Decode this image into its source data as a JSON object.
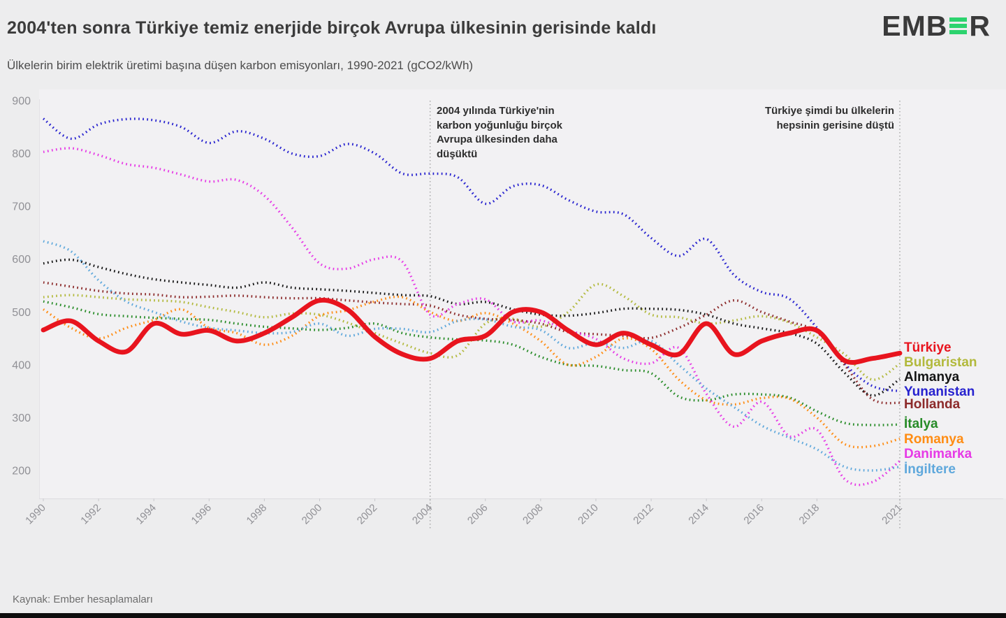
{
  "header": {
    "title": "2004'ten sonra Türkiye temiz enerjide birçok Avrupa ülkesinin gerisinde kaldı",
    "subtitle": "Ülkelerin birim elektrik üretimi başına düşen karbon emisyonları, 1990-2021 (gCO2/kWh)"
  },
  "logo": {
    "left": "EMB",
    "right": "R",
    "bar_color": "#2cd36e"
  },
  "annotations": {
    "ann2004": "2004 yılında Türkiye'nin karbon yoğunluğu birçok Avrupa ülkesinden daha düşüktü",
    "ann2021": "Türkiye şimdi bu ülkelerin hepsinin gerisine düştü"
  },
  "footer": {
    "source": "Kaynak: Ember hesaplamaları"
  },
  "chart_data": {
    "type": "line",
    "title": "2004'ten sonra Türkiye temiz enerjide birçok Avrupa ülkesinin gerisinde kaldı",
    "subtitle": "Ülkelerin birim elektrik üretimi başına düşen karbon emisyonları, 1990-2021 (gCO2/kWh)",
    "units": "gCO2/kWh",
    "x": [
      1990,
      1991,
      1992,
      1993,
      1994,
      1995,
      1996,
      1997,
      1998,
      1999,
      2000,
      2001,
      2002,
      2003,
      2004,
      2005,
      2006,
      2007,
      2008,
      2009,
      2010,
      2011,
      2012,
      2013,
      2014,
      2015,
      2016,
      2017,
      2018,
      2019,
      2020,
      2021
    ],
    "x_tick_labels": [
      "1990",
      "1992",
      "1994",
      "1996",
      "1998",
      "2000",
      "2002",
      "2004",
      "2006",
      "2008",
      "2010",
      "2012",
      "2014",
      "2016",
      "2018",
      "2021"
    ],
    "y_ticks": [
      200,
      300,
      400,
      500,
      600,
      700,
      800,
      900
    ],
    "xlim": [
      1990,
      2021
    ],
    "ylim": [
      150,
      910
    ],
    "grid": false,
    "legend_position": "right",
    "reference_years": [
      2004,
      2021
    ],
    "series": [
      {
        "name": "Türkiye",
        "id": "turkiye",
        "color": "#e8141e",
        "style": "solid",
        "values": [
          466,
          483,
          445,
          425,
          478,
          458,
          465,
          445,
          460,
          490,
          522,
          505,
          453,
          420,
          412,
          445,
          455,
          500,
          500,
          465,
          438,
          460,
          438,
          420,
          478,
          420,
          445,
          460,
          465,
          408,
          412,
          422
        ]
      },
      {
        "name": "Bulgaristan",
        "id": "bulgaristan",
        "color": "#b2b93c",
        "style": "dotted",
        "values": [
          528,
          532,
          528,
          524,
          522,
          519,
          509,
          500,
          490,
          497,
          495,
          480,
          460,
          440,
          422,
          418,
          478,
          487,
          472,
          500,
          552,
          530,
          495,
          490,
          478,
          484,
          492,
          480,
          452,
          420,
          372,
          402
        ]
      },
      {
        "name": "Almanya",
        "id": "almanya",
        "color": "#141414",
        "style": "dotted",
        "values": [
          592,
          599,
          585,
          572,
          562,
          556,
          551,
          546,
          556,
          546,
          543,
          540,
          536,
          532,
          530,
          515,
          519,
          505,
          495,
          493,
          498,
          506,
          506,
          504,
          495,
          478,
          469,
          460,
          440,
          385,
          342,
          373
        ]
      },
      {
        "name": "Yunanistan",
        "id": "yunanistan",
        "color": "#2722cf",
        "style": "dotted",
        "values": [
          866,
          828,
          855,
          865,
          863,
          850,
          820,
          842,
          828,
          800,
          795,
          818,
          800,
          762,
          762,
          755,
          705,
          738,
          740,
          712,
          690,
          685,
          640,
          606,
          638,
          570,
          538,
          525,
          470,
          402,
          360,
          350
        ]
      },
      {
        "name": "Hollanda",
        "id": "hollanda",
        "color": "#8c2a2a",
        "style": "dotted",
        "values": [
          556,
          548,
          540,
          535,
          533,
          528,
          529,
          531,
          528,
          526,
          526,
          522,
          518,
          515,
          512,
          495,
          487,
          485,
          478,
          462,
          458,
          455,
          451,
          470,
          495,
          522,
          500,
          482,
          462,
          400,
          335,
          328
        ]
      },
      {
        "name": "İtalya",
        "id": "italya",
        "color": "#278b27",
        "style": "dotted",
        "values": [
          520,
          509,
          496,
          492,
          489,
          487,
          485,
          478,
          472,
          469,
          466,
          470,
          478,
          460,
          452,
          448,
          446,
          438,
          415,
          400,
          398,
          390,
          384,
          340,
          333,
          344,
          344,
          338,
          312,
          290,
          286,
          287
        ]
      },
      {
        "name": "Romanya",
        "id": "romanya",
        "color": "#ff8c12",
        "style": "dotted",
        "values": [
          505,
          470,
          450,
          470,
          485,
          505,
          470,
          460,
          438,
          455,
          493,
          503,
          520,
          528,
          500,
          483,
          498,
          478,
          445,
          400,
          415,
          450,
          430,
          372,
          333,
          325,
          337,
          336,
          300,
          250,
          246,
          260
        ]
      },
      {
        "name": "Danimarka",
        "id": "danimarka",
        "color": "#e63ae6",
        "style": "dotted",
        "values": [
          803,
          810,
          797,
          780,
          773,
          760,
          747,
          750,
          720,
          660,
          592,
          582,
          600,
          595,
          495,
          515,
          524,
          482,
          484,
          465,
          449,
          412,
          403,
          432,
          345,
          283,
          330,
          265,
          277,
          184,
          178,
          218
        ]
      },
      {
        "name": "İngiltere",
        "id": "ingiltere",
        "color": "#5fa8dc",
        "style": "dotted",
        "values": [
          634,
          615,
          560,
          520,
          500,
          482,
          470,
          465,
          460,
          462,
          478,
          455,
          468,
          468,
          462,
          483,
          486,
          472,
          466,
          432,
          442,
          432,
          445,
          400,
          355,
          320,
          285,
          262,
          240,
          207,
          200,
          207
        ]
      }
    ]
  }
}
